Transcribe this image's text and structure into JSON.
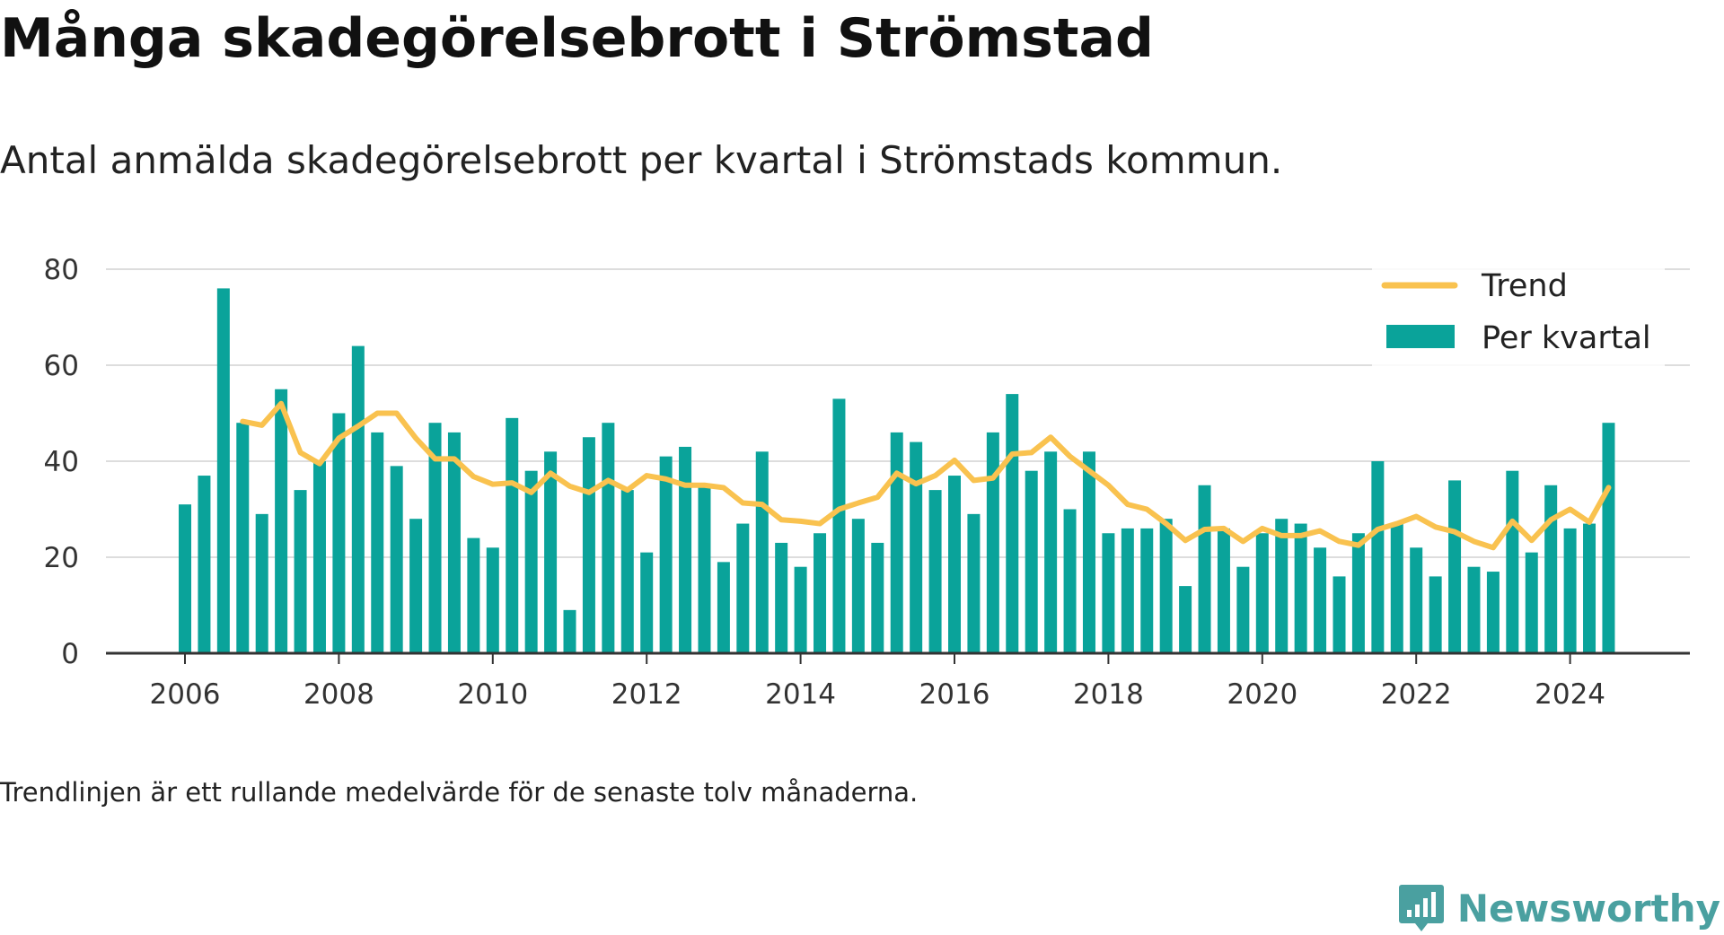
{
  "title": "Många skadegörelsebrott i Strömstad",
  "subtitle": "Antal anmälda skadegörelsebrott per kvartal i Strömstads kommun.",
  "footnote": "Trendlinjen är ett rullande medelvärde för de senaste tolv månaderna.",
  "brand": {
    "name": "Newsworthy",
    "icon": "newsworthy-logo-icon"
  },
  "colors": {
    "bars": "#0aa39a",
    "trend": "#f9c24f",
    "grid": "#dddddd",
    "axis": "#333333",
    "brand": "#4aa0a0"
  },
  "chart_data": {
    "type": "bar",
    "x_unit": "quarter start (decimal year)",
    "ylim": [
      0,
      80
    ],
    "yticks": [
      0,
      20,
      40,
      60,
      80
    ],
    "xticks": [
      2006,
      2008,
      2010,
      2012,
      2014,
      2016,
      2018,
      2020,
      2022,
      2024
    ],
    "grid": true,
    "legend_position": "top-right",
    "series": [
      {
        "name": "Per kvartal",
        "kind": "bar",
        "x": [
          2006.0,
          2006.25,
          2006.5,
          2006.75,
          2007.0,
          2007.25,
          2007.5,
          2007.75,
          2008.0,
          2008.25,
          2008.5,
          2008.75,
          2009.0,
          2009.25,
          2009.5,
          2009.75,
          2010.0,
          2010.25,
          2010.5,
          2010.75,
          2011.0,
          2011.25,
          2011.5,
          2011.75,
          2012.0,
          2012.25,
          2012.5,
          2012.75,
          2013.0,
          2013.25,
          2013.5,
          2013.75,
          2014.0,
          2014.25,
          2014.5,
          2014.75,
          2015.0,
          2015.25,
          2015.5,
          2015.75,
          2016.0,
          2016.25,
          2016.5,
          2016.75,
          2017.0,
          2017.25,
          2017.5,
          2017.75,
          2018.0,
          2018.25,
          2018.5,
          2018.75,
          2019.0,
          2019.25,
          2019.5,
          2019.75,
          2020.0,
          2020.25,
          2020.5,
          2020.75,
          2021.0,
          2021.25,
          2021.5,
          2021.75,
          2022.0,
          2022.25,
          2022.5,
          2022.75,
          2023.0,
          2023.25,
          2023.5,
          2023.75,
          2024.0,
          2024.25,
          2024.5
        ],
        "values": [
          31,
          37,
          76,
          48,
          29,
          55,
          34,
          40,
          50,
          64,
          46,
          39,
          28,
          48,
          46,
          24,
          22,
          49,
          38,
          42,
          9,
          45,
          48,
          34,
          21,
          41,
          43,
          35,
          19,
          27,
          42,
          23,
          18,
          25,
          53,
          28,
          23,
          46,
          44,
          34,
          37,
          29,
          46,
          54,
          38,
          42,
          30,
          42,
          25,
          26,
          26,
          28,
          14,
          35,
          26,
          18,
          25,
          28,
          27,
          22,
          16,
          25,
          40,
          27,
          22,
          16,
          36,
          18,
          17,
          38,
          21,
          35,
          26,
          27,
          48
        ]
      },
      {
        "name": "Trend",
        "kind": "line",
        "x": [
          2006.75,
          2007.0,
          2007.25,
          2007.5,
          2007.75,
          2008.0,
          2008.25,
          2008.5,
          2008.75,
          2009.0,
          2009.25,
          2009.5,
          2009.75,
          2010.0,
          2010.25,
          2010.5,
          2010.75,
          2011.0,
          2011.25,
          2011.5,
          2011.75,
          2012.0,
          2012.25,
          2012.5,
          2012.75,
          2013.0,
          2013.25,
          2013.5,
          2013.75,
          2014.0,
          2014.25,
          2014.5,
          2014.75,
          2015.0,
          2015.25,
          2015.5,
          2015.75,
          2016.0,
          2016.25,
          2016.5,
          2016.75,
          2017.0,
          2017.25,
          2017.5,
          2017.75,
          2018.0,
          2018.25,
          2018.5,
          2018.75,
          2019.0,
          2019.25,
          2019.5,
          2019.75,
          2020.0,
          2020.25,
          2020.5,
          2020.75,
          2021.0,
          2021.25,
          2021.5,
          2021.75,
          2022.0,
          2022.25,
          2022.5,
          2022.75,
          2023.0,
          2023.25,
          2023.5,
          2023.75,
          2024.0,
          2024.25,
          2024.5
        ],
        "values": [
          48.3,
          47.5,
          52.0,
          41.8,
          39.5,
          44.8,
          47.3,
          50.0,
          50.0,
          44.8,
          40.5,
          40.5,
          36.8,
          35.2,
          35.5,
          33.5,
          37.5,
          34.8,
          33.5,
          36.0,
          34.0,
          37.0,
          36.3,
          35.0,
          35.0,
          34.5,
          31.3,
          31.0,
          27.8,
          27.5,
          27.0,
          30.0,
          31.3,
          32.5,
          37.5,
          35.3,
          37.0,
          40.2,
          36.0,
          36.5,
          41.5,
          41.8,
          45.0,
          41.0,
          38.0,
          35.0,
          31.0,
          30.0,
          27.0,
          23.5,
          25.8,
          26.0,
          23.3,
          26.0,
          24.5,
          24.5,
          25.5,
          23.3,
          22.5,
          25.8,
          27.0,
          28.5,
          26.3,
          25.3,
          23.3,
          22.0,
          27.5,
          23.5,
          27.8,
          30.0,
          27.3,
          34.5
        ]
      }
    ]
  }
}
